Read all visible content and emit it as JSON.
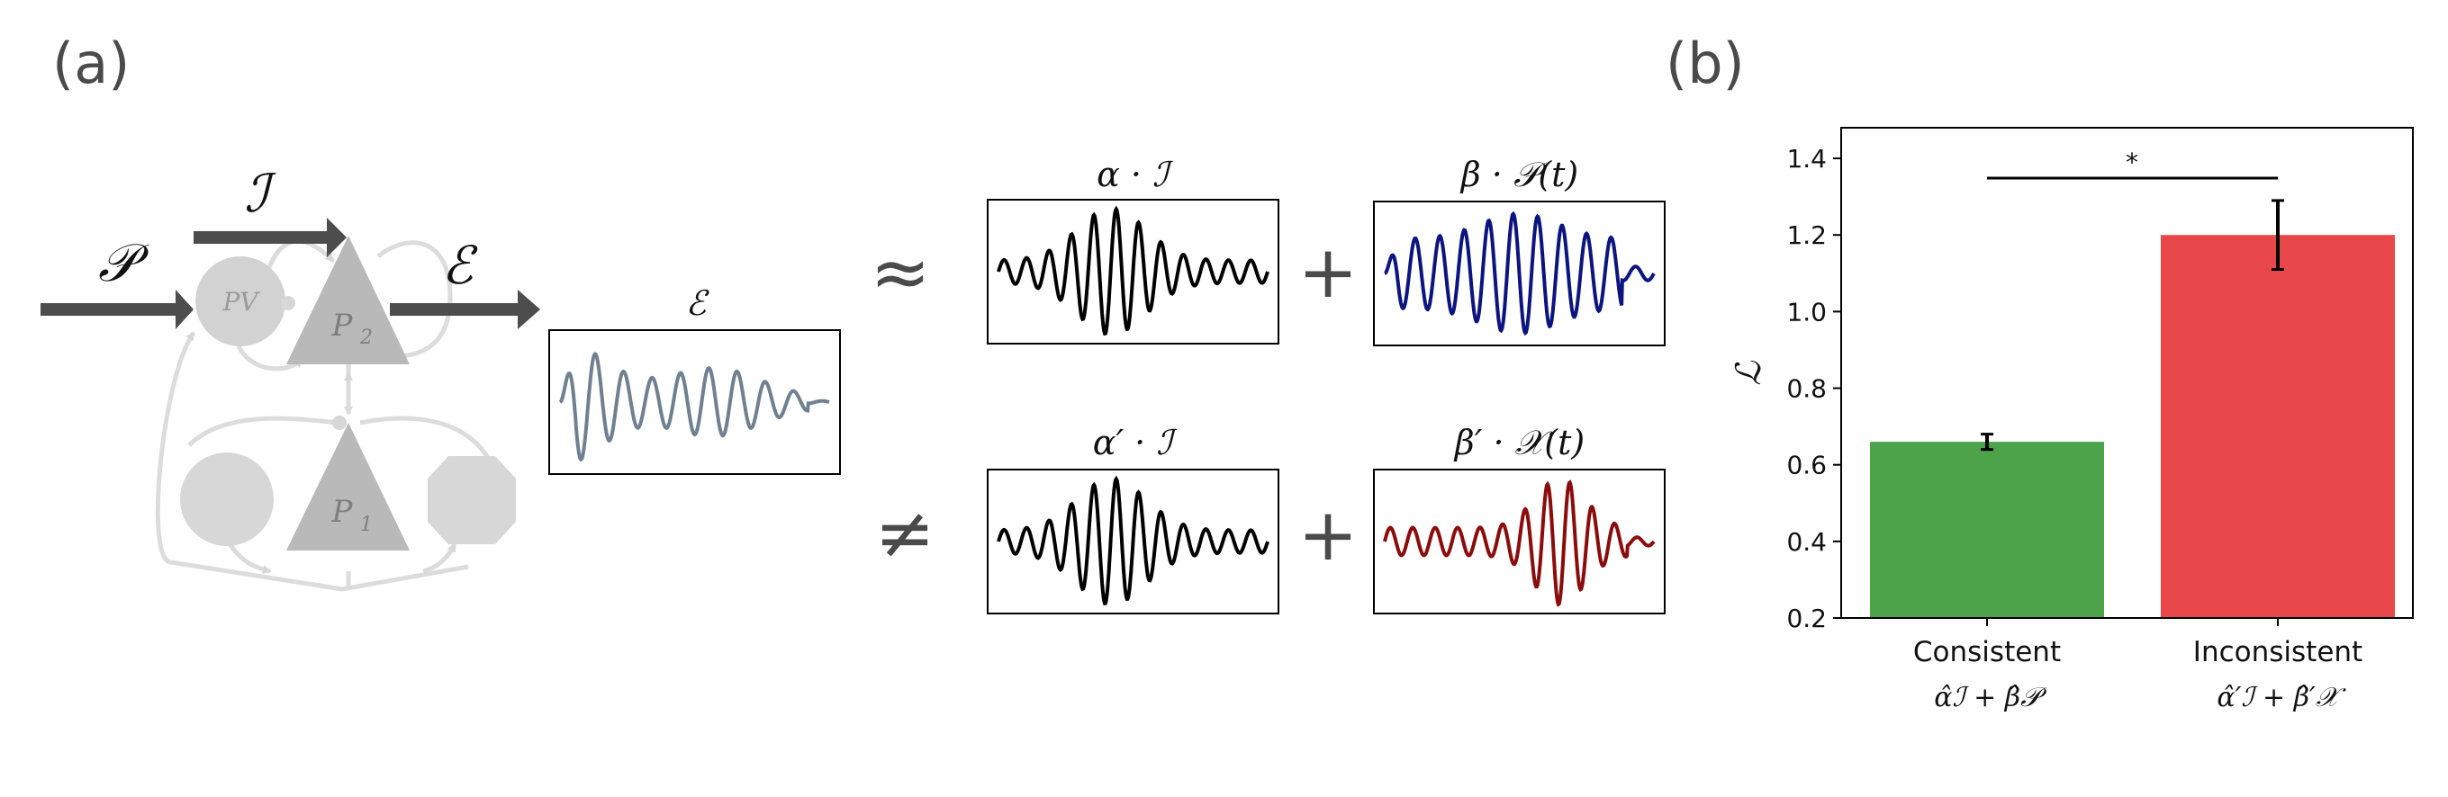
{
  "panel_a": {
    "label": "(a)",
    "inputs": {
      "P": "𝒫",
      "I": "ℐ",
      "E": "ℰ"
    },
    "nodes": {
      "pv": "PV",
      "p2": "P",
      "p2_sub": "2",
      "p1": "P",
      "p1_sub": "1"
    },
    "signal_title": "ℰ",
    "approx_symbol": "≈",
    "neq_symbol": "≠",
    "plus_symbol": "+",
    "top_term1": "α · ℐ",
    "top_term2": "β · 𝒫(t)",
    "bottom_term1": "α′ · ℐ",
    "bottom_term2": "β′ · 𝒳(t)",
    "colors": {
      "signal": "#6f8191",
      "black": "#000000",
      "blue": "#0c1480",
      "red": "#8b0c0c",
      "node": "#c8c8c8",
      "arrow": "#4d4d4d"
    }
  },
  "panel_b": {
    "label": "(b)",
    "significance": "*",
    "cat_labels": [
      "Consistent",
      "Inconsistent"
    ],
    "cat_formulas": [
      "α̂ℐ + β̂𝒫",
      "α̂′ℐ + β̂′𝒳"
    ]
  },
  "chart_data": {
    "type": "bar",
    "categories": [
      "Consistent",
      "Inconsistent"
    ],
    "values": [
      0.66,
      1.2
    ],
    "errors": [
      0.02,
      0.09
    ],
    "colors": [
      "#4ca34a",
      "#e8484a"
    ],
    "ylabel": "ℒ",
    "ylim": [
      0.2,
      1.48
    ],
    "yticks": [
      "0.2",
      "0.4",
      "0.6",
      "0.8",
      "1.0",
      "1.2",
      "1.4"
    ],
    "annotation": "*"
  }
}
